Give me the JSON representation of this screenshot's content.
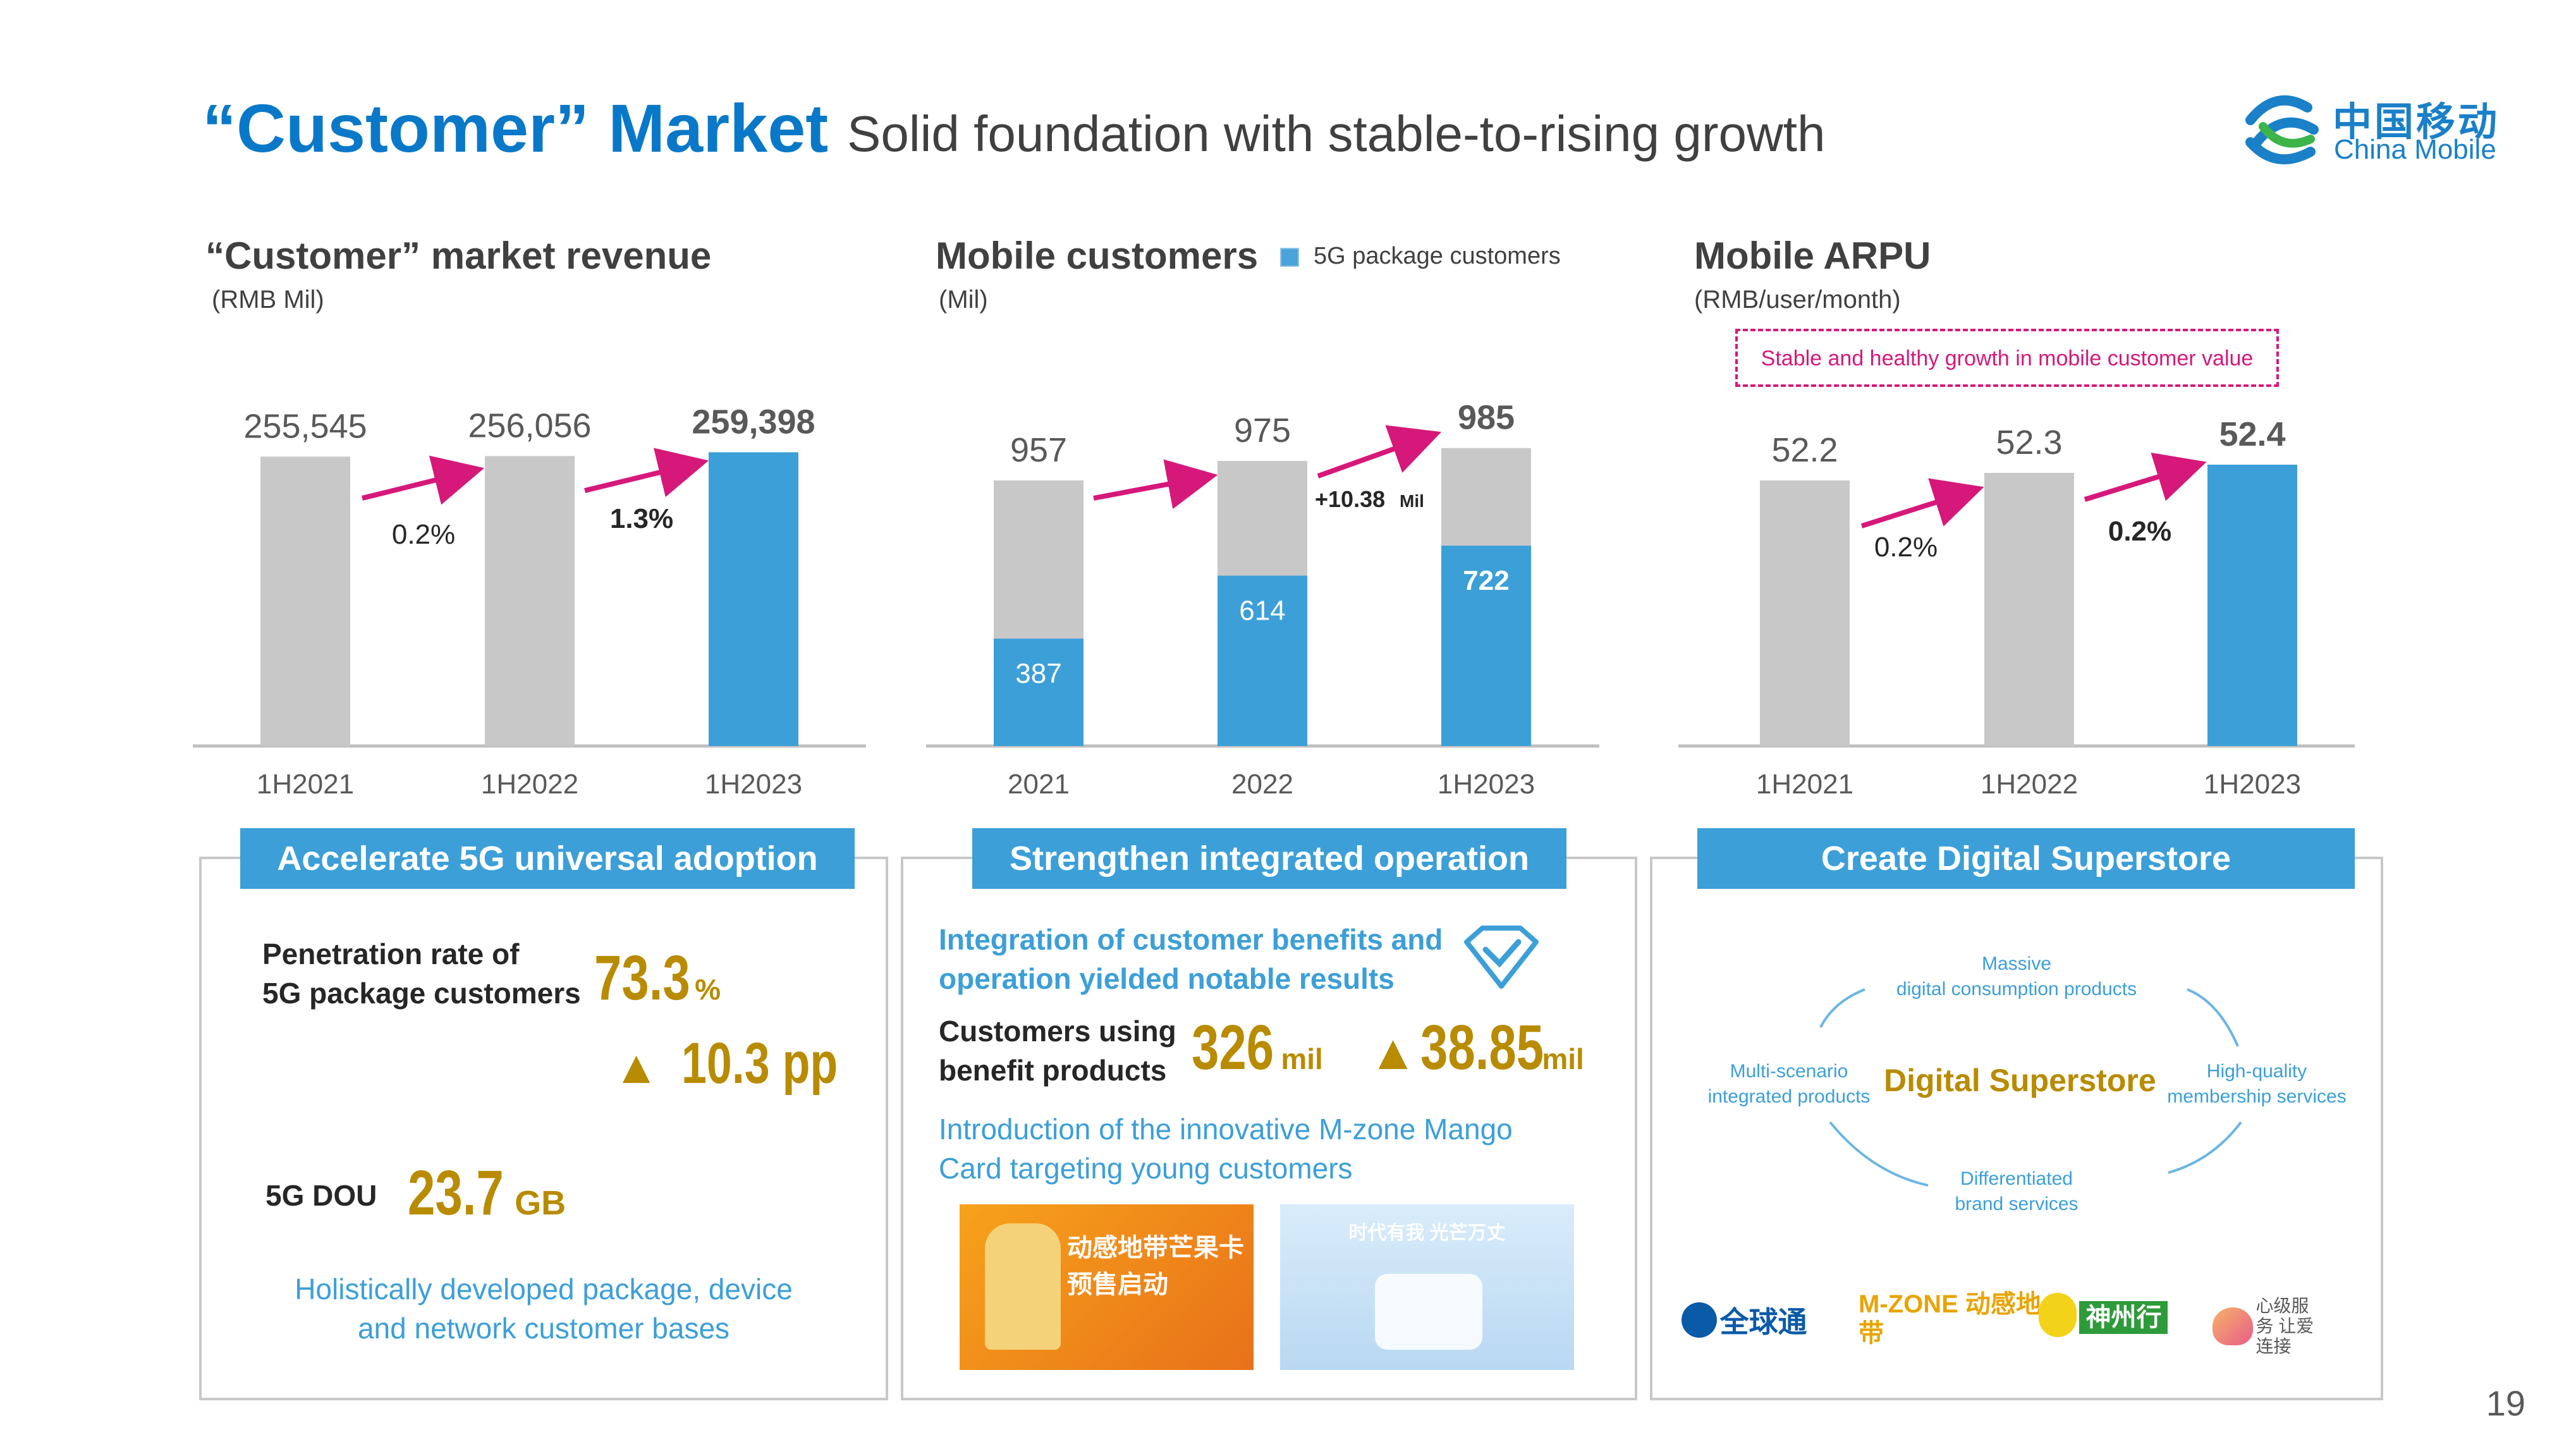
{
  "header": {
    "title": "“Customer” Market",
    "subtitle": "Solid foundation with stable-to-rising growth",
    "logo_cn": "中国移动",
    "logo_en": "China Mobile"
  },
  "charts": {
    "revenue": {
      "title": "“Customer” market revenue",
      "unit": "(RMB Mil)",
      "growth": [
        "0.2%",
        "1.3%"
      ]
    },
    "mobile": {
      "title": "Mobile customers",
      "unit": "(Mil)",
      "legend": "5G package customers",
      "increase_value": "+10.38",
      "increase_unit": "Mil"
    },
    "arpu": {
      "title": "Mobile ARPU",
      "unit": "(RMB/user/month)",
      "callout": "Stable and healthy growth in mobile customer value",
      "growth": [
        "0.2%",
        "0.2%"
      ]
    }
  },
  "chart_data": [
    {
      "type": "bar",
      "title": "“Customer” market revenue",
      "ylabel": "(RMB Mil)",
      "categories": [
        "1H2021",
        "1H2022",
        "1H2023"
      ],
      "values": [
        255545,
        256056,
        259398
      ],
      "value_labels": [
        "255,545",
        "256,056",
        "259,398"
      ],
      "ylim": [
        0,
        270000
      ],
      "colors": [
        "#c8c8c8",
        "#c8c8c8",
        "#3c9fd8"
      ]
    },
    {
      "type": "bar",
      "title": "Mobile customers",
      "ylabel": "(Mil)",
      "categories": [
        "2021",
        "2022",
        "1H2023"
      ],
      "series": [
        {
          "name": "5G package customers",
          "values": [
            387,
            614,
            722
          ]
        },
        {
          "values": [
            957,
            975,
            985
          ]
        }
      ],
      "ylim": [
        0,
        1050
      ]
    },
    {
      "type": "bar",
      "title": "Mobile ARPU",
      "ylabel": "(RMB/user/month)",
      "categories": [
        "1H2021",
        "1H2022",
        "1H2023"
      ],
      "values": [
        52.2,
        52.3,
        52.4
      ],
      "ylim": [
        0,
        56
      ],
      "colors": [
        "#c8c8c8",
        "#c8c8c8",
        "#3c9fd8"
      ]
    }
  ],
  "panels": {
    "fiveg": {
      "header": "Accelerate 5G universal adoption",
      "penetration_label_1": "Penetration rate of",
      "penetration_label_2": "5G package customers",
      "penetration_value": "73.3",
      "penetration_unit": "%",
      "triangle": "▲",
      "penetration_change": "10.3 pp",
      "dou_label": "5G DOU",
      "dou_value": "23.7",
      "dou_unit": "GB",
      "footer_1": "Holistically developed package, device",
      "footer_2": "and network customer bases"
    },
    "integrated": {
      "header": "Strengthen integrated operation",
      "line1": "Integration of customer benefits and",
      "line2": "operation yielded notable results",
      "using_1": "Customers using",
      "using_2": "benefit products",
      "using_value": "326",
      "using_unit": "mil",
      "triangle": "▲",
      "using_change": "38.85",
      "using_change_unit": "mil",
      "intro_1": "Introduction of the innovative M-zone Mango",
      "intro_2": "Card targeting young customers",
      "poster1_text": "动感地带芒果卡 预售启动",
      "poster2_text": "时代有我 光芒万丈"
    },
    "superstore": {
      "header": "Create Digital Superstore",
      "center": "Digital Superstore",
      "top_1": "Massive",
      "top_2": "digital consumption products",
      "left_1": "Multi-scenario",
      "left_2": "integrated products",
      "right_1": "High-quality",
      "right_2": "membership services",
      "bottom_1": "Differentiated",
      "bottom_2": "brand services",
      "brands": [
        "全球通",
        "M-ZONE 动感地带",
        "神州行",
        "心级服务 让爱连接"
      ]
    }
  },
  "page_number": "19",
  "colors": {
    "accent_blue": "#0a78c8",
    "bar_blue": "#3c9fd8",
    "bar_grey": "#c8c8c8",
    "arrow_magenta": "#d6187a",
    "gold": "#b88b00"
  }
}
